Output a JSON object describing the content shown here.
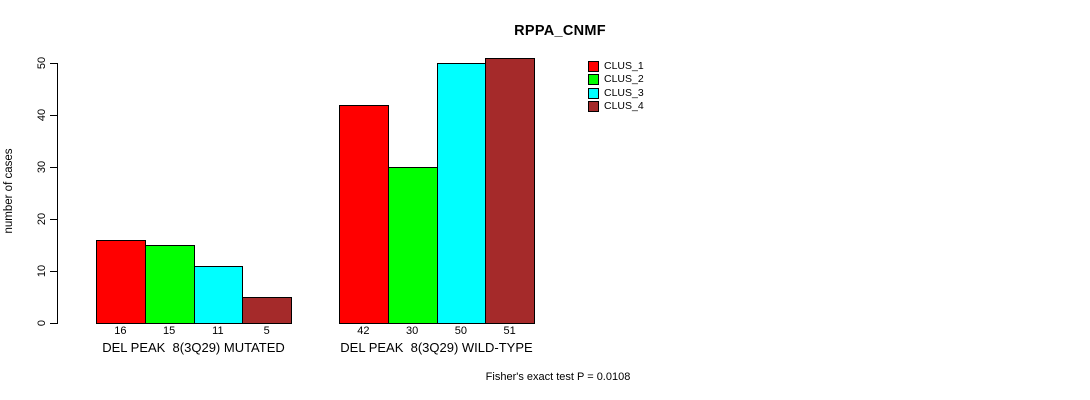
{
  "chart_data": {
    "type": "bar",
    "title": "RPPA_CNMF",
    "xlabel": "",
    "ylabel": "number of cases",
    "ylim": [
      0,
      50
    ],
    "yticks": [
      0,
      10,
      20,
      30,
      40,
      50
    ],
    "grid": false,
    "legend_position": "top-right",
    "bar_border_color": "#000000",
    "background_color": "#ffffff",
    "annotation": "Fisher's exact test P = 0.0108",
    "categories": [
      "DEL PEAK  8(3Q29) MUTATED",
      "DEL PEAK  8(3Q29) WILD-TYPE"
    ],
    "series": [
      {
        "name": "CLUS_1",
        "color": "#ff0000",
        "values": [
          16,
          42
        ]
      },
      {
        "name": "CLUS_2",
        "color": "#00ff00",
        "values": [
          15,
          30
        ]
      },
      {
        "name": "CLUS_3",
        "color": "#00ffff",
        "values": [
          11,
          50
        ]
      },
      {
        "name": "CLUS_4",
        "color": "#a52a2a",
        "values": [
          5,
          51
        ]
      }
    ]
  }
}
